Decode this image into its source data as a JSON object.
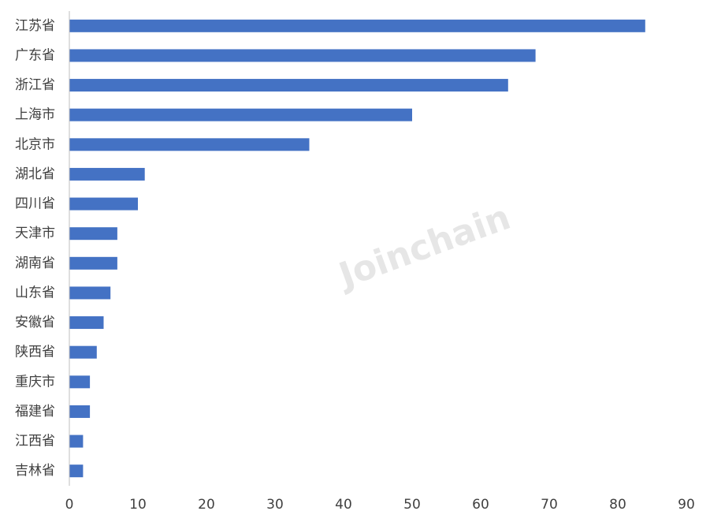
{
  "chart_data": {
    "type": "barh",
    "categories": [
      "江苏省",
      "广东省",
      "浙江省",
      "上海市",
      "北京市",
      "湖北省",
      "四川省",
      "天津市",
      "湖南省",
      "山东省",
      "安徽省",
      "陕西省",
      "重庆市",
      "福建省",
      "江西省",
      "吉林省"
    ],
    "values": [
      84,
      68,
      64,
      50,
      35,
      11,
      10,
      7,
      7,
      6,
      5,
      4,
      3,
      3,
      2,
      2
    ],
    "color": "#4472c4",
    "xlim": [
      0,
      90
    ],
    "xticks": [
      0,
      10,
      20,
      30,
      40,
      50,
      60,
      70,
      80,
      90
    ],
    "watermark": "Joinchain"
  }
}
